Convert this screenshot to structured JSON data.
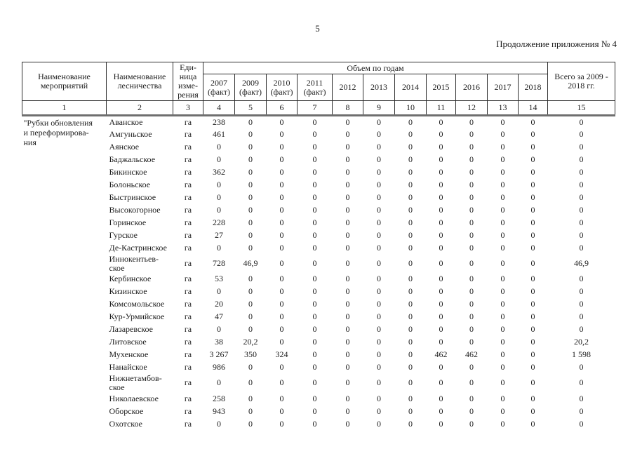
{
  "page": {
    "number": "5",
    "caption": "Продолжение приложения № 4"
  },
  "table": {
    "header": {
      "col_activity": "Наименование\nмероприятий",
      "col_forestry": "Наименование\nлесничества",
      "col_unit": "Еди-\nница\nизме-\nрения",
      "volume_group": "Объем по годам",
      "year_cols": [
        "2007\n(факт)",
        "2009\n(факт)",
        "2010\n(факт)",
        "2011\n(факт)",
        "2012",
        "2013",
        "2014",
        "2015",
        "2016",
        "2017",
        "2018"
      ],
      "col_total": "Всего за 2009 -\n2018 гг.",
      "column_numbers": [
        "1",
        "2",
        "3",
        "4",
        "5",
        "6",
        "7",
        "8",
        "9",
        "10",
        "11",
        "12",
        "13",
        "14",
        "15"
      ]
    },
    "activity": "\"Рубки обновления\nи переформирова-\nния",
    "rows": [
      {
        "forestry": "Аванское",
        "unit": "га",
        "values": [
          "238",
          "0",
          "0",
          "0",
          "0",
          "0",
          "0",
          "0",
          "0",
          "0",
          "0"
        ],
        "total": "0"
      },
      {
        "forestry": "Амгуньское",
        "unit": "га",
        "values": [
          "461",
          "0",
          "0",
          "0",
          "0",
          "0",
          "0",
          "0",
          "0",
          "0",
          "0"
        ],
        "total": "0"
      },
      {
        "forestry": "Аянское",
        "unit": "га",
        "values": [
          "0",
          "0",
          "0",
          "0",
          "0",
          "0",
          "0",
          "0",
          "0",
          "0",
          "0"
        ],
        "total": "0"
      },
      {
        "forestry": "Баджальское",
        "unit": "га",
        "values": [
          "0",
          "0",
          "0",
          "0",
          "0",
          "0",
          "0",
          "0",
          "0",
          "0",
          "0"
        ],
        "total": "0"
      },
      {
        "forestry": "Бикинское",
        "unit": "га",
        "values": [
          "362",
          "0",
          "0",
          "0",
          "0",
          "0",
          "0",
          "0",
          "0",
          "0",
          "0"
        ],
        "total": "0"
      },
      {
        "forestry": "Болоньское",
        "unit": "га",
        "values": [
          "0",
          "0",
          "0",
          "0",
          "0",
          "0",
          "0",
          "0",
          "0",
          "0",
          "0"
        ],
        "total": "0"
      },
      {
        "forestry": "Быстринское",
        "unit": "га",
        "values": [
          "0",
          "0",
          "0",
          "0",
          "0",
          "0",
          "0",
          "0",
          "0",
          "0",
          "0"
        ],
        "total": "0"
      },
      {
        "forestry": "Высокогорное",
        "unit": "га",
        "values": [
          "0",
          "0",
          "0",
          "0",
          "0",
          "0",
          "0",
          "0",
          "0",
          "0",
          "0"
        ],
        "total": "0"
      },
      {
        "forestry": "Горинское",
        "unit": "га",
        "values": [
          "228",
          "0",
          "0",
          "0",
          "0",
          "0",
          "0",
          "0",
          "0",
          "0",
          "0"
        ],
        "total": "0"
      },
      {
        "forestry": "Гурское",
        "unit": "га",
        "values": [
          "27",
          "0",
          "0",
          "0",
          "0",
          "0",
          "0",
          "0",
          "0",
          "0",
          "0"
        ],
        "total": "0"
      },
      {
        "forestry": "Де-Кастринское",
        "unit": "га",
        "values": [
          "0",
          "0",
          "0",
          "0",
          "0",
          "0",
          "0",
          "0",
          "0",
          "0",
          "0"
        ],
        "total": "0"
      },
      {
        "forestry": "Иннокентьев-\nское",
        "unit": "га",
        "values": [
          "728",
          "46,9",
          "0",
          "0",
          "0",
          "0",
          "0",
          "0",
          "0",
          "0",
          "0"
        ],
        "total": "46,9"
      },
      {
        "forestry": "Кербинское",
        "unit": "га",
        "values": [
          "53",
          "0",
          "0",
          "0",
          "0",
          "0",
          "0",
          "0",
          "0",
          "0",
          "0"
        ],
        "total": "0"
      },
      {
        "forestry": "Кизинское",
        "unit": "га",
        "values": [
          "0",
          "0",
          "0",
          "0",
          "0",
          "0",
          "0",
          "0",
          "0",
          "0",
          "0"
        ],
        "total": "0"
      },
      {
        "forestry": "Комсомольское",
        "unit": "га",
        "values": [
          "20",
          "0",
          "0",
          "0",
          "0",
          "0",
          "0",
          "0",
          "0",
          "0",
          "0"
        ],
        "total": "0"
      },
      {
        "forestry": "Кур-Урмийское",
        "unit": "га",
        "values": [
          "47",
          "0",
          "0",
          "0",
          "0",
          "0",
          "0",
          "0",
          "0",
          "0",
          "0"
        ],
        "total": "0"
      },
      {
        "forestry": "Лазаревское",
        "unit": "га",
        "values": [
          "0",
          "0",
          "0",
          "0",
          "0",
          "0",
          "0",
          "0",
          "0",
          "0",
          "0"
        ],
        "total": "0"
      },
      {
        "forestry": "Литовское",
        "unit": "га",
        "values": [
          "38",
          "20,2",
          "0",
          "0",
          "0",
          "0",
          "0",
          "0",
          "0",
          "0",
          "0"
        ],
        "total": "20,2"
      },
      {
        "forestry": "Мухенское",
        "unit": "га",
        "values": [
          "3 267",
          "350",
          "324",
          "0",
          "0",
          "0",
          "0",
          "462",
          "462",
          "0",
          "0"
        ],
        "total": "1 598"
      },
      {
        "forestry": "Нанайское",
        "unit": "га",
        "values": [
          "986",
          "0",
          "0",
          "0",
          "0",
          "0",
          "0",
          "0",
          "0",
          "0",
          "0"
        ],
        "total": "0"
      },
      {
        "forestry": "Нижнетамбов-\nское",
        "unit": "га",
        "values": [
          "0",
          "0",
          "0",
          "0",
          "0",
          "0",
          "0",
          "0",
          "0",
          "0",
          "0"
        ],
        "total": "0"
      },
      {
        "forestry": "Николаевское",
        "unit": "га",
        "values": [
          "258",
          "0",
          "0",
          "0",
          "0",
          "0",
          "0",
          "0",
          "0",
          "0",
          "0"
        ],
        "total": "0"
      },
      {
        "forestry": "Оборское",
        "unit": "га",
        "values": [
          "943",
          "0",
          "0",
          "0",
          "0",
          "0",
          "0",
          "0",
          "0",
          "0",
          "0"
        ],
        "total": "0"
      },
      {
        "forestry": "Охотское",
        "unit": "га",
        "values": [
          "0",
          "0",
          "0",
          "0",
          "0",
          "0",
          "0",
          "0",
          "0",
          "0",
          "0"
        ],
        "total": "0"
      }
    ]
  }
}
